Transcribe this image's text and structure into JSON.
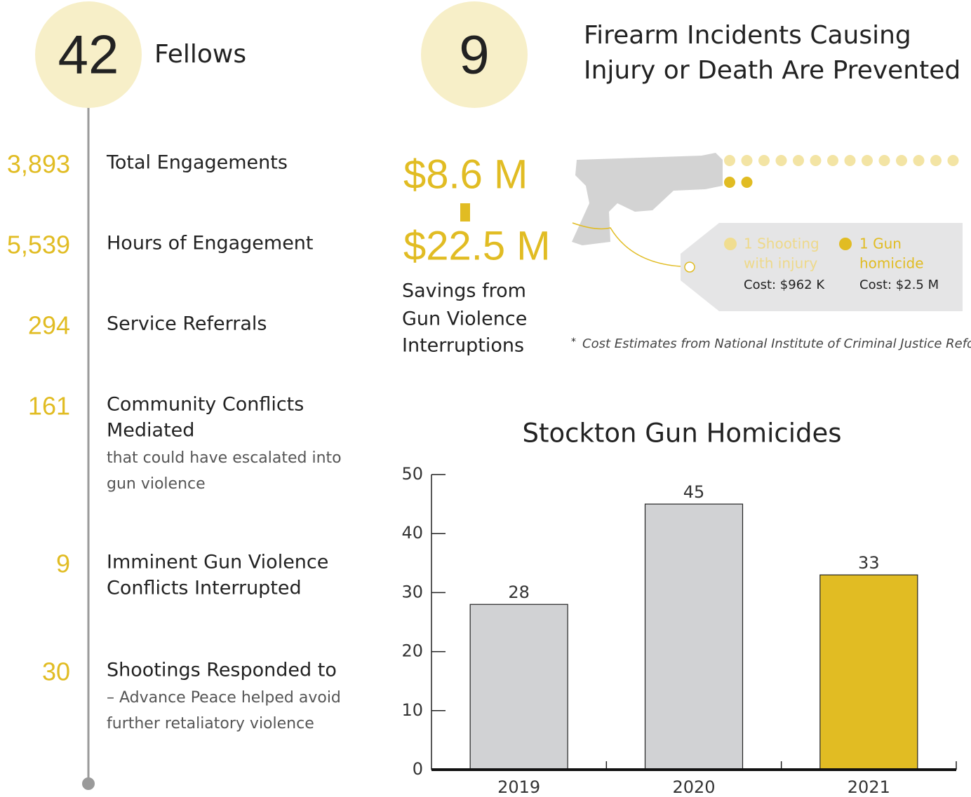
{
  "header": {
    "fellows_number": "42",
    "fellows_label": "Fellows",
    "incidents_number": "9",
    "incidents_label": [
      "Firearm Incidents Causing",
      "Injury or Death Are Prevented"
    ]
  },
  "stats": [
    {
      "number": "3,893",
      "label": [
        "Total Engagements"
      ]
    },
    {
      "number": "5,539",
      "label": [
        "Hours of Engagement"
      ]
    },
    {
      "number": "294",
      "label": [
        "Service Referrals"
      ]
    },
    {
      "number": "161",
      "label": [
        "Community Conflicts",
        "Mediated"
      ],
      "note": [
        "that could have escalated into",
        "gun violence"
      ]
    },
    {
      "number": "9",
      "label": [
        "Imminent Gun Violence",
        "Conflicts Interrupted"
      ]
    },
    {
      "number": "30",
      "label": [
        "Shootings Responded to"
      ],
      "note": [
        "– Advance Peace helped avoid",
        "further retaliatory violence"
      ]
    }
  ],
  "savings": {
    "low": "$8.6 M",
    "high": "$22.5 M",
    "label": [
      "Savings from",
      "Gun Violence",
      "Interruptions"
    ]
  },
  "cost_tag": {
    "items": [
      {
        "label": [
          "1 Shooting",
          "with injury"
        ],
        "cost": "Cost: $962 K"
      },
      {
        "label": [
          "1 Gun",
          "homicide"
        ],
        "cost": "Cost: $2.5 M"
      }
    ]
  },
  "footnote": {
    "mark": "*",
    "text": "Cost Estimates from National Institute of Criminal Justice Reform"
  },
  "chart_data": {
    "type": "bar",
    "title": "Stockton Gun Homicides",
    "categories": [
      "2019",
      "2020",
      "2021"
    ],
    "values": [
      28,
      45,
      33
    ],
    "colors": [
      "#d1d2d4",
      "#d1d2d4",
      "#e1bc23"
    ],
    "ylim": [
      0,
      50
    ],
    "yticks": [
      0,
      10,
      20,
      30,
      40,
      50
    ]
  }
}
